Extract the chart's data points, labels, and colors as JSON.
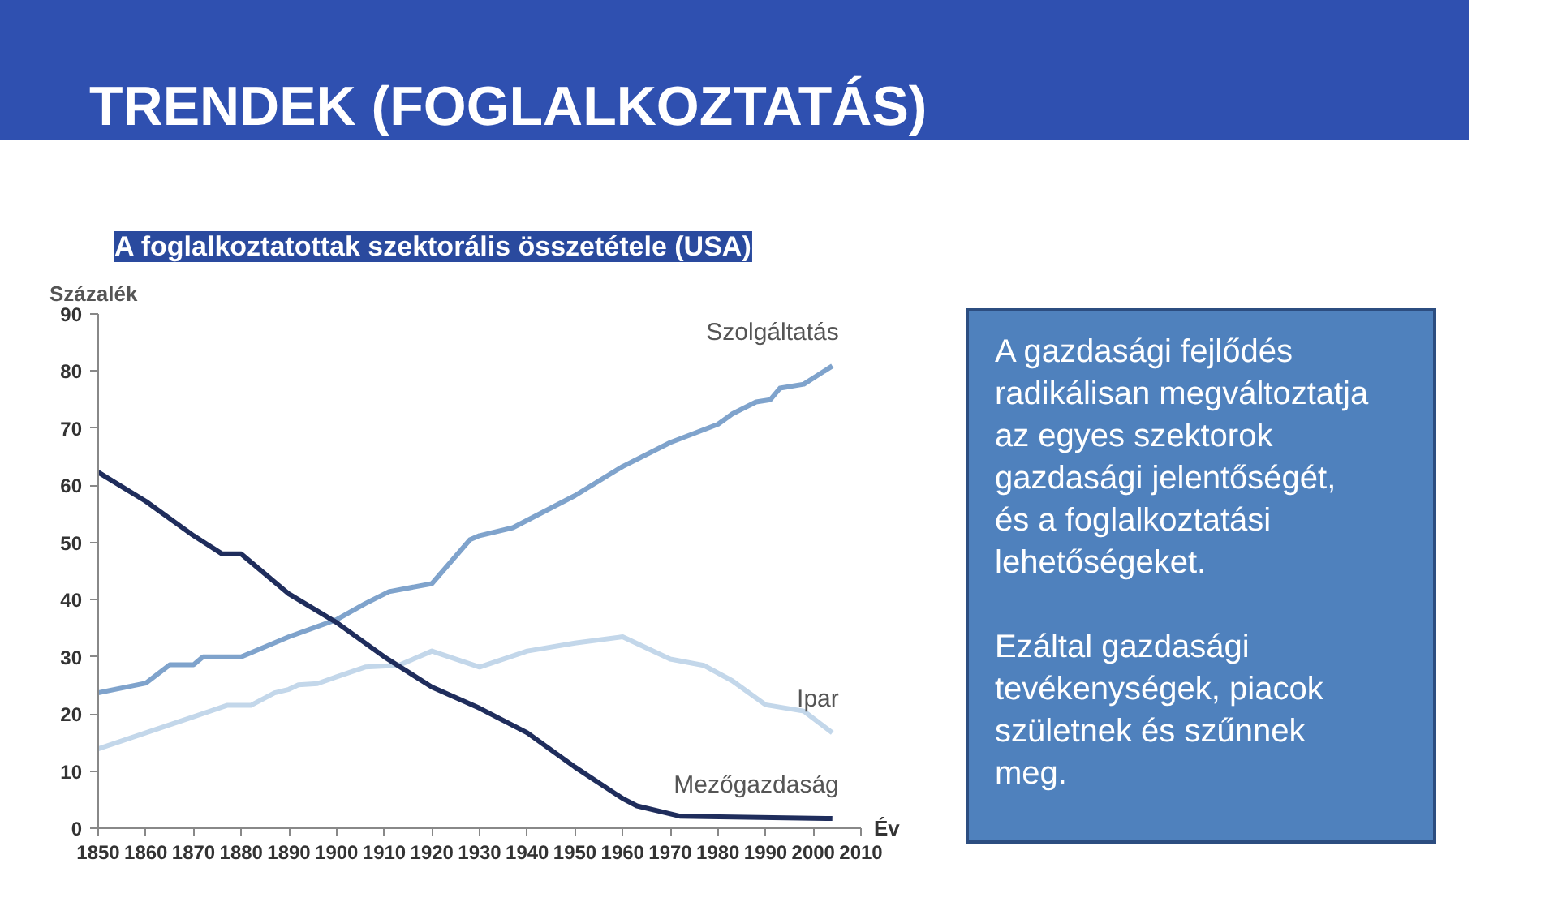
{
  "chart_data": {
    "type": "line",
    "title": "TRENDEK (FOGLALKOZTATÁS)",
    "subtitle": "A foglalkoztatottak szektorális összetétele (USA)",
    "ylabel": "Százalék",
    "xlabel": "Év",
    "xlim": [
      1850,
      2010
    ],
    "xticks": [
      1850,
      1860,
      1870,
      1880,
      1890,
      1900,
      1910,
      1920,
      1930,
      1940,
      1950,
      1960,
      1970,
      1980,
      1990,
      2000,
      2010
    ],
    "ylim": [
      0,
      90
    ],
    "yticks": [
      0,
      10,
      20,
      30,
      40,
      50,
      60,
      70,
      80,
      90
    ],
    "grid": false,
    "legend": false,
    "series": [
      {
        "name": "Szolgáltatás",
        "color": "#7fa3cc",
        "x": [
          1850,
          1860,
          1865,
          1870,
          1872,
          1880,
          1890,
          1900,
          1906,
          1911,
          1920,
          1928,
          1930,
          1937,
          1950,
          1960,
          1970,
          1980,
          1983,
          1988,
          1991,
          1993,
          1998,
          2004
        ],
        "values": [
          23.7,
          25.4,
          28.6,
          28.6,
          30,
          30,
          33.5,
          36.5,
          39.3,
          41.4,
          42.8,
          50.5,
          51.2,
          52.6,
          58.2,
          63.3,
          67.5,
          70.7,
          72.5,
          74.6,
          75,
          77,
          77.7,
          80.9
        ]
      },
      {
        "name": "Ipar",
        "color": "#c3d7ea",
        "x": [
          1850,
          1860,
          1870,
          1877,
          1882,
          1887,
          1890,
          1892,
          1896,
          1900,
          1906,
          1913,
          1920,
          1930,
          1940,
          1950,
          1960,
          1970,
          1977,
          1983,
          1990,
          1998,
          2004
        ],
        "values": [
          13.9,
          16.7,
          19.5,
          21.5,
          21.5,
          23.7,
          24.3,
          25.1,
          25.3,
          26.5,
          28.2,
          28.5,
          31,
          28.2,
          31,
          32.4,
          33.5,
          29.6,
          28.5,
          25.8,
          21.6,
          20.5,
          16.7
        ]
      },
      {
        "name": "Mezőgazdaság",
        "color": "#1f2d5c",
        "x": [
          1850,
          1860,
          1870,
          1876,
          1880,
          1890,
          1900,
          1910,
          1920,
          1930,
          1940,
          1950,
          1960,
          1963,
          1972,
          2004
        ],
        "values": [
          62.3,
          57.2,
          51.2,
          48,
          48,
          41,
          36,
          30,
          24.7,
          21,
          16.7,
          10.7,
          5.2,
          3.9,
          2.1,
          1.7
        ]
      }
    ],
    "annotations": [
      "A gazdasági fejlődés\nradikálisan megváltoztatja\naz egyes szektorok\ngazdasági jelentőségét,\nés  a foglalkoztatási\nlehetőségeket.",
      "Ezáltal gazdasági\ntevékenységek, piacok\nszületnek és szűnnek\nmeg."
    ]
  }
}
